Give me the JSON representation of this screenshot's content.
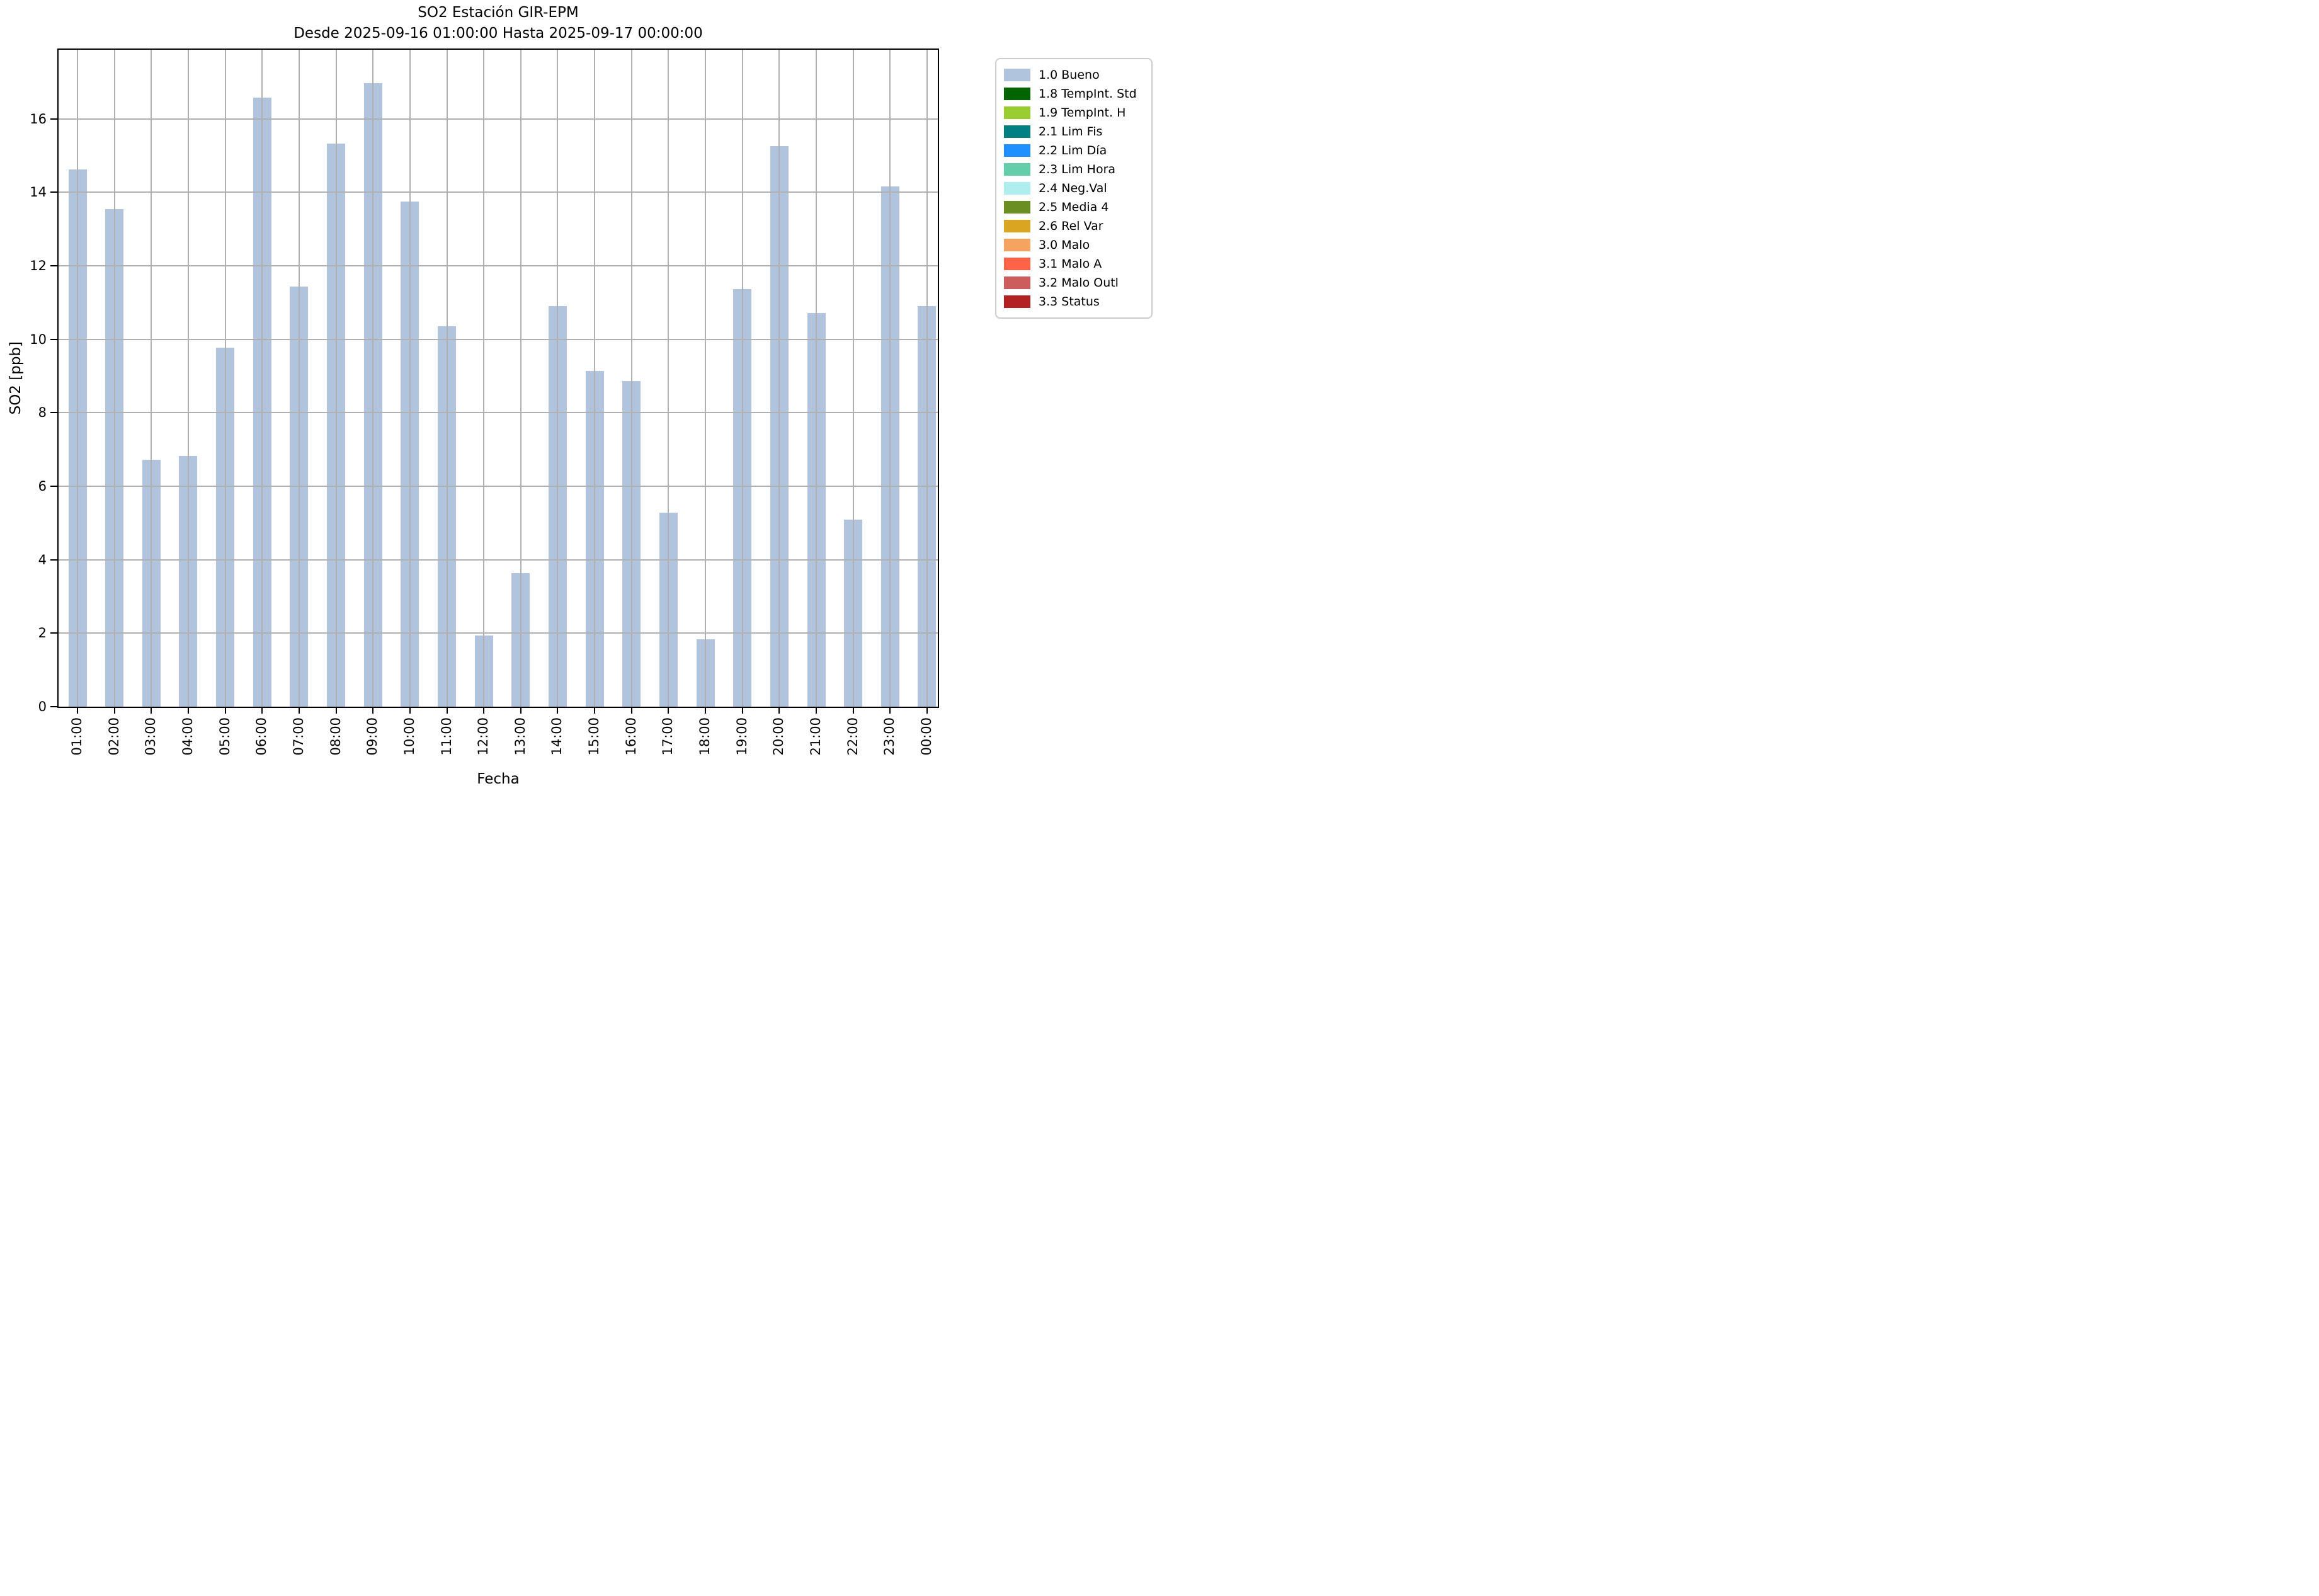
{
  "chart_data": {
    "type": "bar",
    "title": "SO2 Estación GIR-EPM",
    "subtitle": "Desde 2025-09-16 01:00:00 Hasta 2025-09-17 00:00:00",
    "xlabel": "Fecha",
    "ylabel": "SO2 [ppb]",
    "categories": [
      "01:00",
      "02:00",
      "03:00",
      "04:00",
      "05:00",
      "06:00",
      "07:00",
      "08:00",
      "09:00",
      "10:00",
      "11:00",
      "12:00",
      "13:00",
      "14:00",
      "15:00",
      "16:00",
      "17:00",
      "18:00",
      "19:00",
      "20:00",
      "21:00",
      "22:00",
      "23:00",
      "00:00"
    ],
    "values": [
      14.62,
      13.54,
      6.72,
      6.82,
      9.77,
      16.58,
      11.44,
      15.33,
      16.97,
      13.75,
      10.36,
      1.93,
      3.64,
      10.91,
      9.13,
      8.87,
      5.28,
      1.84,
      11.37,
      15.25,
      10.72,
      5.09,
      14.16,
      10.9
    ],
    "series_name": "1.0 Bueno",
    "ylim": [
      0,
      17.88
    ],
    "yticks": [
      0,
      2,
      4,
      6,
      8,
      10,
      12,
      14,
      16
    ],
    "grid": true,
    "grid_color": "#b0b0b0",
    "bar_color": "#b0c4de",
    "legend_position": "outside upper right",
    "legend": [
      {
        "label": "1.0 Bueno",
        "color": "#b0c4de"
      },
      {
        "label": "1.8 TempInt. Std",
        "color": "#006400"
      },
      {
        "label": "1.9 TempInt. H",
        "color": "#9acd32"
      },
      {
        "label": "2.1 Lim Fis",
        "color": "#008080"
      },
      {
        "label": "2.2 Lim Día",
        "color": "#1e90ff"
      },
      {
        "label": "2.3 Lim Hora",
        "color": "#66cdaa"
      },
      {
        "label": "2.4 Neg.Val",
        "color": "#afeeee"
      },
      {
        "label": "2.5 Media 4",
        "color": "#6b8e23"
      },
      {
        "label": "2.6 Rel Var",
        "color": "#daa520"
      },
      {
        "label": "3.0 Malo",
        "color": "#f4a460"
      },
      {
        "label": "3.1 Malo A",
        "color": "#ff6347"
      },
      {
        "label": "3.2 Malo Outl",
        "color": "#cd5c5c"
      },
      {
        "label": "3.3 Status",
        "color": "#b22222"
      }
    ]
  }
}
